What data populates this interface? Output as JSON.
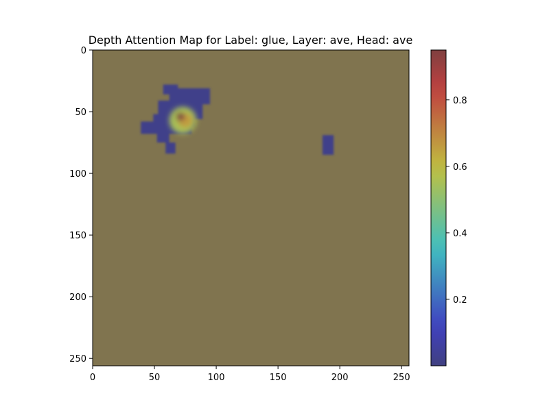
{
  "chart_data": {
    "type": "heatmap",
    "title": "Depth Attention Map for Label: glue, Layer: ave, Head: ave",
    "xlabel": "",
    "ylabel": "",
    "x_range": [
      0,
      256
    ],
    "y_range": [
      256,
      0
    ],
    "x_ticks": [
      "0",
      "50",
      "100",
      "150",
      "200",
      "250"
    ],
    "y_ticks": [
      "0",
      "50",
      "100",
      "150",
      "200",
      "250"
    ],
    "x_tick_values": [
      0,
      50,
      100,
      150,
      200,
      250
    ],
    "y_tick_values": [
      0,
      50,
      100,
      150,
      200,
      250
    ],
    "background_value": 0.5,
    "background_color": "#80744f",
    "colorbar": {
      "colormap": "jet",
      "alpha": 0.5,
      "range": [
        0.0,
        0.95
      ],
      "ticks": [
        "0.2",
        "0.4",
        "0.6",
        "0.8"
      ],
      "tick_values": [
        0.2,
        0.4,
        0.6,
        0.8
      ]
    },
    "regions": [
      {
        "x": [
          57,
          69
        ],
        "y": [
          28,
          36
        ],
        "value": 0.02
      },
      {
        "x": [
          62,
          95
        ],
        "y": [
          31,
          44
        ],
        "value": 0.02
      },
      {
        "x": [
          53,
          89
        ],
        "y": [
          41,
          56
        ],
        "value": 0.02
      },
      {
        "x": [
          49,
          82
        ],
        "y": [
          52,
          62
        ],
        "value": 0.02
      },
      {
        "x": [
          39,
          80
        ],
        "y": [
          58,
          68
        ],
        "value": 0.02
      },
      {
        "x": [
          52,
          62
        ],
        "y": [
          66,
          75
        ],
        "value": 0.02
      },
      {
        "x": [
          59,
          67
        ],
        "y": [
          75,
          84
        ],
        "value": 0.02
      },
      {
        "x": [
          186,
          195
        ],
        "y": [
          69,
          85
        ],
        "value": 0.02
      }
    ],
    "hotspots": [
      {
        "x": 73,
        "y": 57,
        "value": 0.55,
        "radius": 11
      },
      {
        "x": 75,
        "y": 57,
        "value": 0.66,
        "radius": 6
      },
      {
        "x": 71,
        "y": 54,
        "value": 0.95,
        "radius": 3.5
      }
    ]
  }
}
